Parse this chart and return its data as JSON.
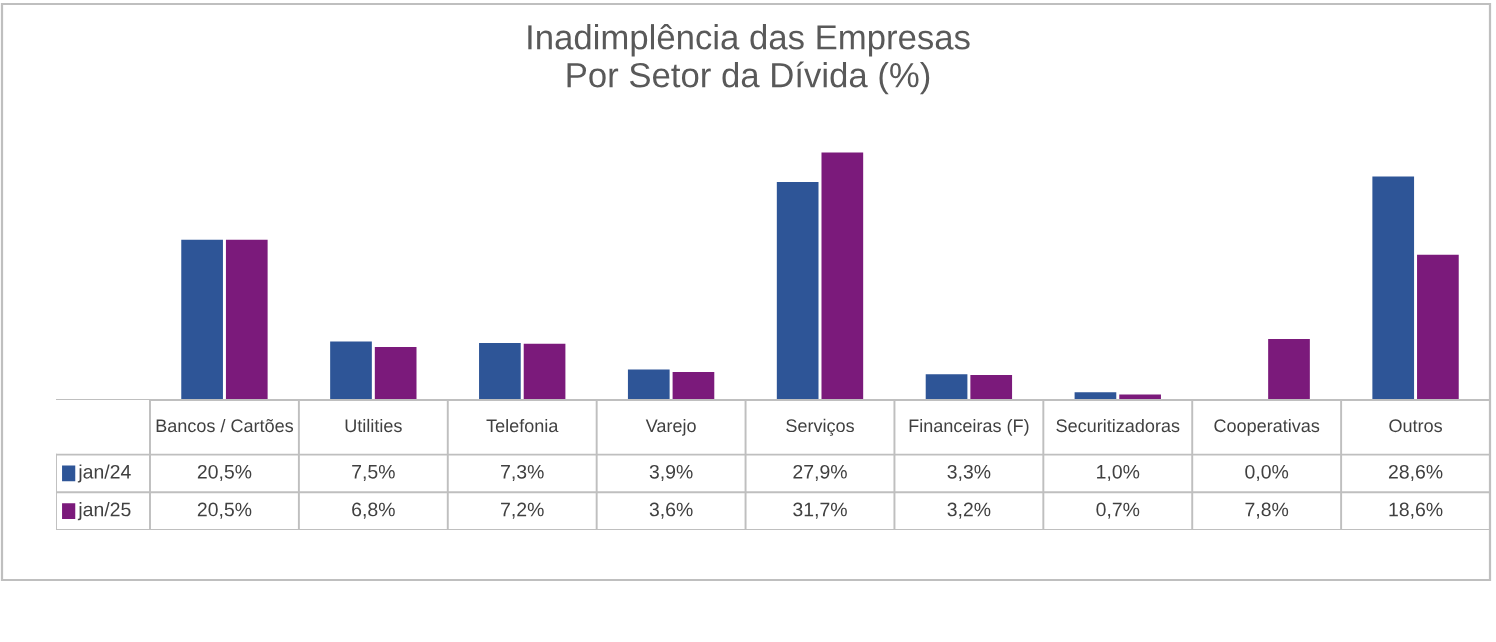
{
  "chart_data": {
    "type": "bar",
    "title": "Inadimplência das Empresas\nPor Setor da Dívida (%)",
    "categories": [
      "Bancos / Cartões",
      "Utilities",
      "Telefonia",
      "Varejo",
      "Serviços",
      "Financeiras (F)",
      "Securitizadoras",
      "Cooperativas",
      "Outros"
    ],
    "series": [
      {
        "name": "jan/24",
        "color": "#2e5597",
        "values": [
          20.5,
          7.5,
          7.3,
          3.9,
          27.9,
          3.3,
          1.0,
          0.0,
          28.6
        ],
        "value_labels": [
          "20,5%",
          "7,5%",
          "7,3%",
          "3,9%",
          "27,9%",
          "3,3%",
          "1,0%",
          "0,0%",
          "28,6%"
        ]
      },
      {
        "name": "jan/25",
        "color": "#7b1a7b",
        "values": [
          20.5,
          6.8,
          7.2,
          3.6,
          31.7,
          3.2,
          0.7,
          7.8,
          18.6
        ],
        "value_labels": [
          "20,5%",
          "6,8%",
          "7,2%",
          "3,6%",
          "31,7%",
          "3,2%",
          "0,7%",
          "7,8%",
          "18,6%"
        ]
      }
    ],
    "legend": "bottom"
  }
}
